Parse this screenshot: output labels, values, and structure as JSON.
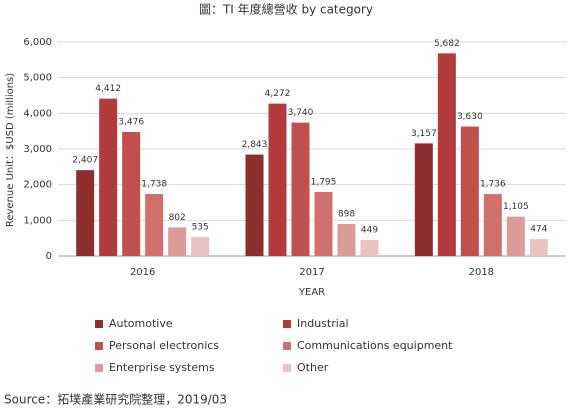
{
  "chart_data": {
    "type": "bar",
    "title": "圖：TI 年度總營收 by category",
    "y_label": "Revenue Unit：$USD (millions)",
    "x_label": "YEAR",
    "source": "Source：拓墣產業研究院整理，2019/03",
    "categories": [
      "2016",
      "2017",
      "2018"
    ],
    "series": [
      {
        "name": "Automotive",
        "color": "#8e2f2f",
        "values": [
          2407,
          2843,
          3157
        ],
        "value_labels": [
          "2,407",
          "2,843",
          "3,157"
        ]
      },
      {
        "name": "Industrial",
        "color": "#b23b3b",
        "values": [
          4412,
          4272,
          5682
        ],
        "value_labels": [
          "4,412",
          "4,272",
          "5,682"
        ]
      },
      {
        "name": "Personal electronics",
        "color": "#c0504d",
        "values": [
          3476,
          3740,
          3630
        ],
        "value_labels": [
          "3,476",
          "3,740",
          "3,630"
        ]
      },
      {
        "name": "Communications equipment",
        "color": "#cf706d",
        "values": [
          1738,
          1795,
          1736
        ],
        "value_labels": [
          "1,738",
          "1,795",
          "1,736"
        ]
      },
      {
        "name": "Enterprise systems",
        "color": "#dc9b99",
        "values": [
          802,
          898,
          1105
        ],
        "value_labels": [
          "802",
          "898",
          "1,105"
        ]
      },
      {
        "name": "Other",
        "color": "#e9c3c2",
        "values": [
          535,
          449,
          474
        ],
        "value_labels": [
          "535",
          "449",
          "474"
        ]
      }
    ],
    "ylim": [
      0,
      6000
    ],
    "yticks": [
      0,
      {
        "value": 1000,
        "label": "1,000"
      },
      {
        "value": 2000,
        "label": "2,000"
      },
      {
        "value": 3000,
        "label": "3,000"
      },
      {
        "value": 4000,
        "label": "4,000"
      },
      {
        "value": 5000,
        "label": "5,000"
      },
      {
        "value": 6000,
        "label": "6,000"
      }
    ],
    "grid": true,
    "legend": "bottom"
  }
}
